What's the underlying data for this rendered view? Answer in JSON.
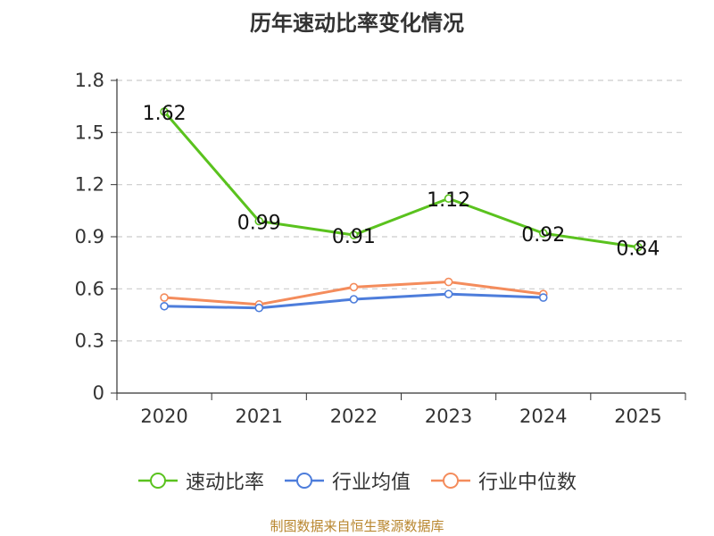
{
  "chart_data": {
    "type": "line",
    "title": "历年速动比率变化情况",
    "categories": [
      "2020",
      "2021",
      "2022",
      "2023",
      "2024",
      "2025"
    ],
    "ylim": [
      0,
      1.8
    ],
    "yticks": [
      "0",
      "0.3",
      "0.6",
      "0.9",
      "1.2",
      "1.5",
      "1.8"
    ],
    "xlabel": "",
    "ylabel": "",
    "grid": true,
    "legend_position": "bottom",
    "series": [
      {
        "name": "速动比率",
        "color": "#5ac21e",
        "values": [
          1.62,
          0.99,
          0.91,
          1.12,
          0.92,
          0.84
        ],
        "labels": [
          "1.62",
          "0.99",
          "0.91",
          "1.12",
          "0.92",
          "0.84"
        ]
      },
      {
        "name": "行业均值",
        "color": "#4d7ddb",
        "values": [
          0.5,
          0.49,
          0.54,
          0.57,
          0.55,
          null
        ]
      },
      {
        "name": "行业中位数",
        "color": "#f48c5c",
        "values": [
          0.55,
          0.51,
          0.61,
          0.64,
          0.57,
          null
        ]
      }
    ],
    "source": "制图数据来自恒生聚源数据库"
  }
}
